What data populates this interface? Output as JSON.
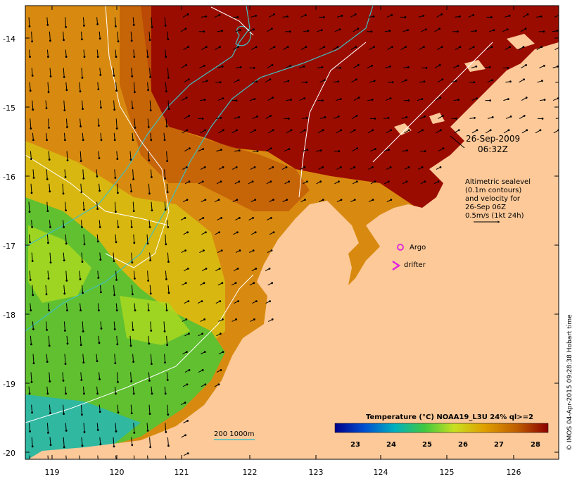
{
  "map": {
    "lon_ticks": [
      "119",
      "120",
      "121",
      "122",
      "123",
      "124",
      "125",
      "126"
    ],
    "lat_ticks": [
      "-14",
      "-15",
      "-16",
      "-17",
      "-18",
      "-19",
      "-20"
    ],
    "date": "26-Sep-2009",
    "time": "06:32Z",
    "altimetry_lines": [
      "Altimetric sealevel",
      "(0.1m contours)",
      "and velocity for",
      "26-Sep 06Z",
      "0.5m/s (1kt 24h)"
    ],
    "legend": {
      "argo": "Argo",
      "drifter": "drifter",
      "argo_color": "#e020e0",
      "drifter_color": "#e020e0"
    },
    "isobath_label": "200  1000m",
    "isobath_color": "#40c0c0",
    "contour_color": "#ffffff",
    "land_color": "#fdc999",
    "colorbar": {
      "title": "Temperature (°C) NOAA19_L3U 24% ql>=2",
      "labels": [
        "23",
        "24",
        "25",
        "26",
        "27",
        "28"
      ],
      "colors": [
        "#00008b",
        "#0050d0",
        "#00b0c0",
        "#40c840",
        "#c8e020",
        "#e0a000",
        "#c06000",
        "#8b0000"
      ]
    },
    "credit": "© IMOS 04-Apr-2015 09:28:38 Hobart time"
  }
}
